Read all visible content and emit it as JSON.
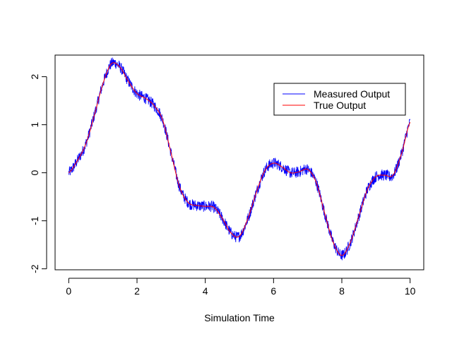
{
  "chart_data": {
    "type": "line",
    "title": "",
    "xlabel": "Simulation Time",
    "ylabel": "",
    "xlim": [
      -0.4,
      10.4
    ],
    "ylim": [
      -2.02,
      2.45
    ],
    "xticks": [
      0,
      2,
      4,
      6,
      8,
      10
    ],
    "yticks": [
      -2,
      -1,
      0,
      1,
      2
    ],
    "grid": false,
    "legend": "top-right",
    "series": [
      {
        "name": "Measured Output",
        "color": "#0000ff",
        "noise_amplitude": 0.12,
        "x": [
          0,
          0.25,
          0.5,
          0.75,
          1.0,
          1.25,
          1.5,
          1.75,
          2.0,
          2.25,
          2.5,
          2.75,
          3.0,
          3.25,
          3.5,
          3.75,
          4.0,
          4.25,
          4.5,
          4.75,
          5.0,
          5.25,
          5.5,
          5.75,
          6.0,
          6.25,
          6.5,
          6.75,
          7.0,
          7.25,
          7.5,
          7.75,
          8.0,
          8.25,
          8.5,
          8.75,
          9.0,
          9.25,
          9.5,
          9.75,
          10.0
        ],
        "y": [
          0.0,
          0.25,
          0.6,
          1.2,
          1.85,
          2.27,
          2.2,
          1.9,
          1.65,
          1.55,
          1.4,
          1.1,
          0.4,
          -0.3,
          -0.62,
          -0.68,
          -0.7,
          -0.72,
          -0.95,
          -1.25,
          -1.32,
          -0.95,
          -0.4,
          0.05,
          0.2,
          0.12,
          0.0,
          0.02,
          0.07,
          -0.2,
          -0.85,
          -1.45,
          -1.72,
          -1.45,
          -0.9,
          -0.35,
          -0.08,
          -0.05,
          -0.05,
          0.4,
          1.05
        ]
      },
      {
        "name": "True Output",
        "color": "#ff0000",
        "x": [
          0,
          0.25,
          0.5,
          0.75,
          1.0,
          1.25,
          1.5,
          1.75,
          2.0,
          2.25,
          2.5,
          2.75,
          3.0,
          3.25,
          3.5,
          3.75,
          4.0,
          4.25,
          4.5,
          4.75,
          5.0,
          5.25,
          5.5,
          5.75,
          6.0,
          6.25,
          6.5,
          6.75,
          7.0,
          7.25,
          7.5,
          7.75,
          8.0,
          8.25,
          8.5,
          8.75,
          9.0,
          9.25,
          9.5,
          9.75,
          10.0
        ],
        "y": [
          0.0,
          0.25,
          0.6,
          1.2,
          1.85,
          2.27,
          2.2,
          1.9,
          1.65,
          1.55,
          1.4,
          1.1,
          0.4,
          -0.3,
          -0.62,
          -0.68,
          -0.7,
          -0.72,
          -0.95,
          -1.25,
          -1.32,
          -0.95,
          -0.4,
          0.05,
          0.2,
          0.12,
          0.0,
          0.02,
          0.07,
          -0.2,
          -0.85,
          -1.45,
          -1.72,
          -1.45,
          -0.9,
          -0.35,
          -0.08,
          -0.05,
          -0.05,
          0.4,
          1.05
        ]
      }
    ]
  }
}
